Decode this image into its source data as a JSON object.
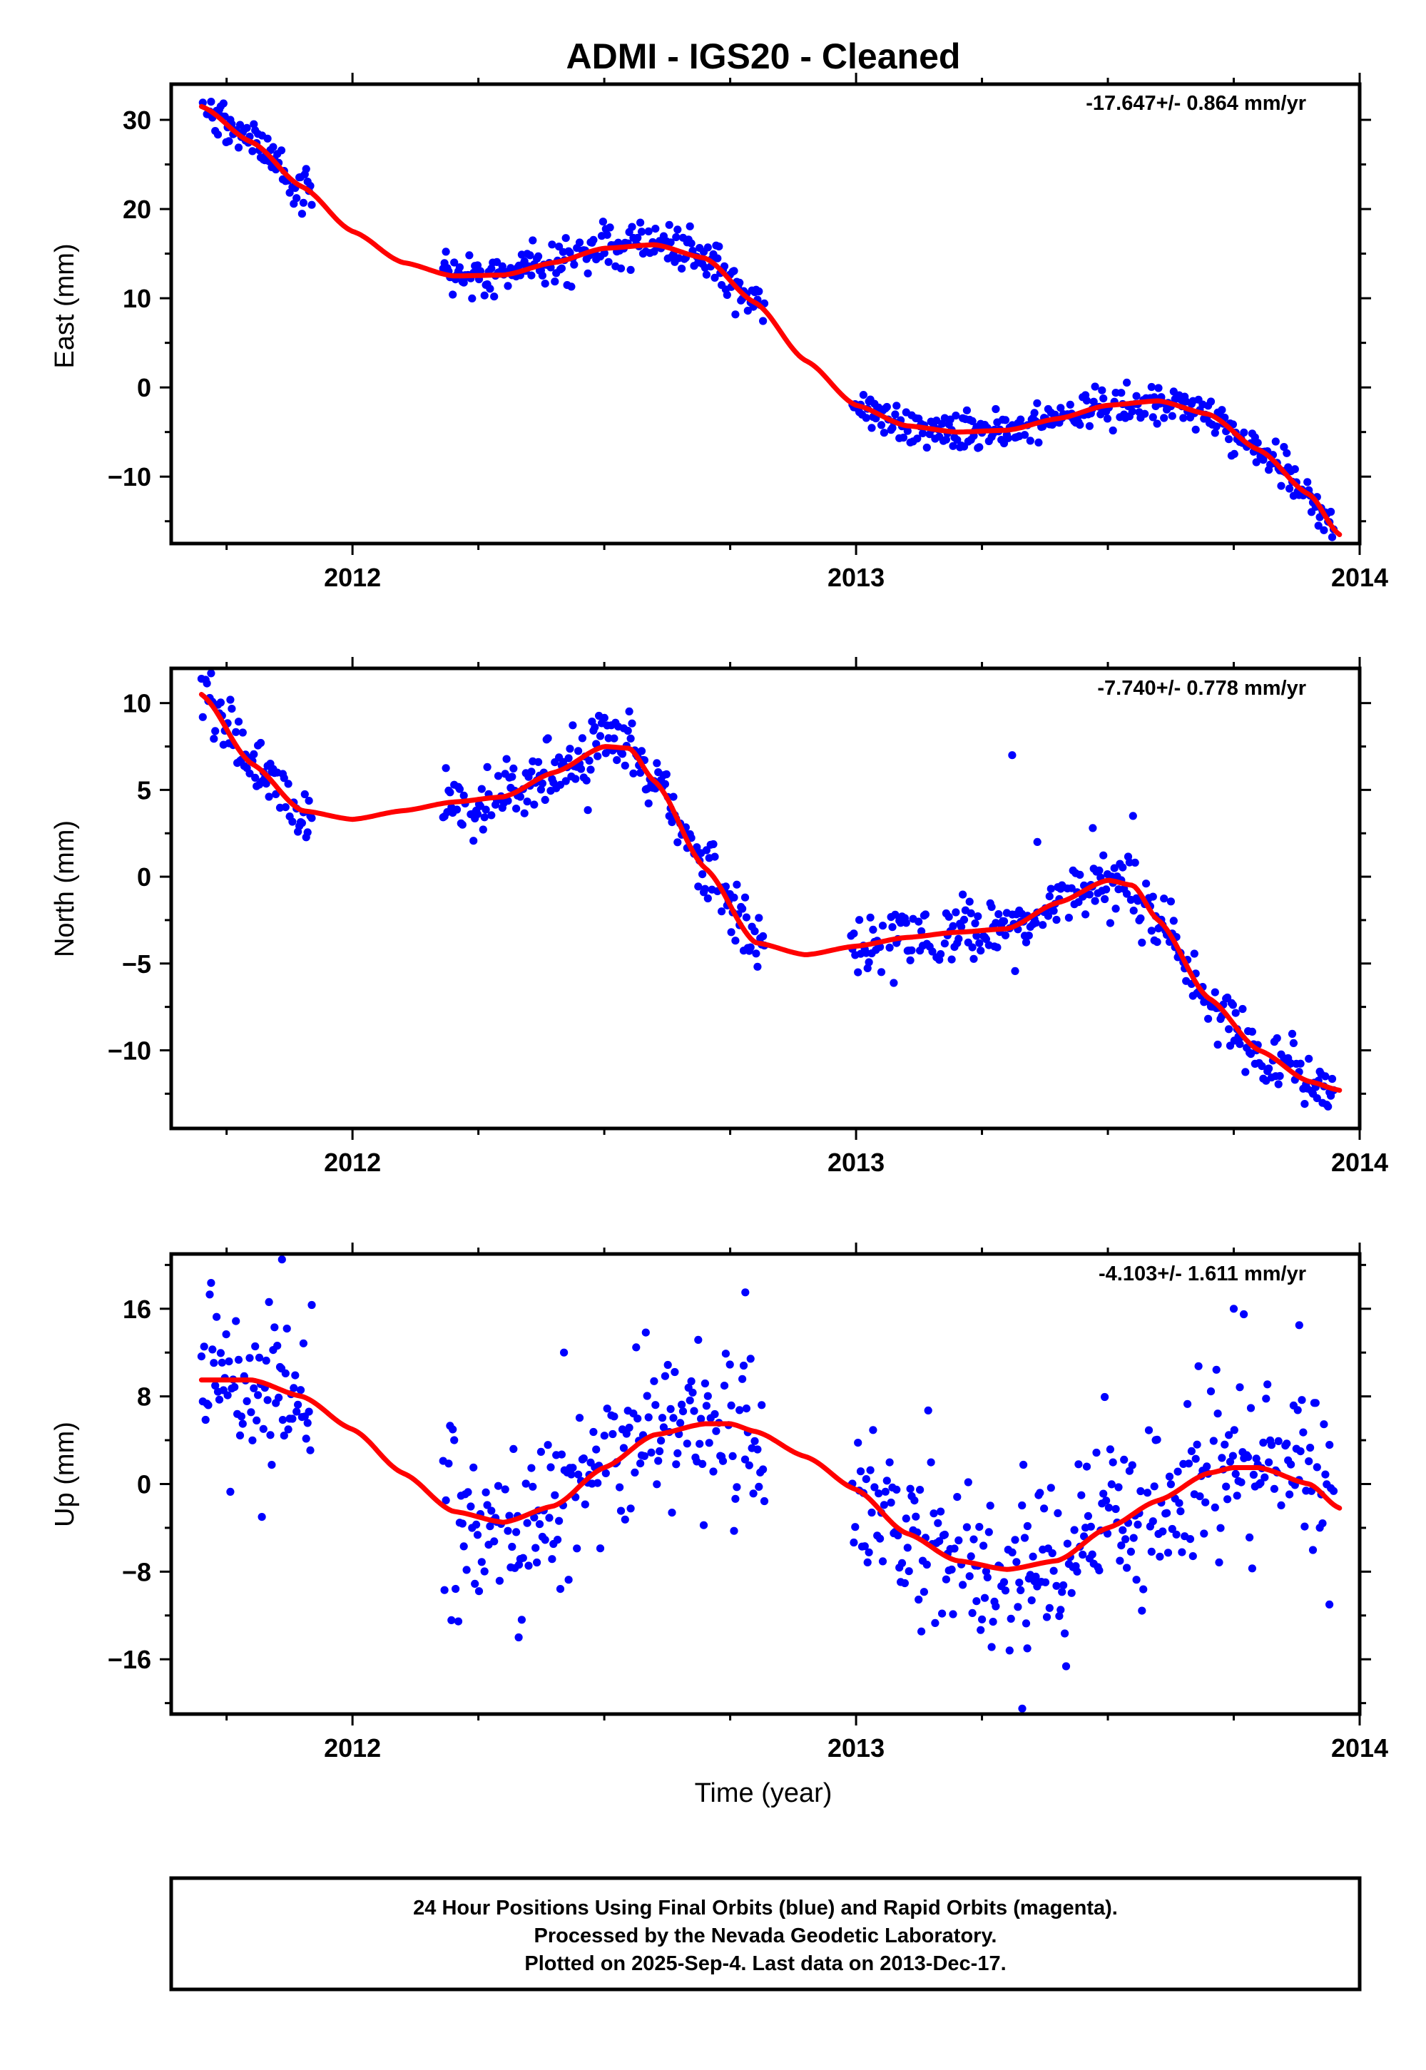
{
  "colors": {
    "final_orbits": "#0000ff",
    "rapid_orbits": "#ff00ff",
    "fit_line": "#ff0000",
    "frame": "#000000"
  },
  "chart_data": [
    {
      "type": "scatter",
      "title": "ADMI  - IGS20 - Cleaned",
      "ylabel": "East (mm)",
      "xlabel": "",
      "rate_text": "-17.647+/- 0.864 mm/yr",
      "xlim": [
        2011.64,
        2014.0
      ],
      "ylim": [
        -17.5,
        34.0
      ],
      "xticks": [
        2012,
        2013,
        2014
      ],
      "yticks": [
        -10,
        0,
        10,
        20,
        30
      ],
      "grid": false,
      "data_segments": [
        [
          2011.7,
          2011.92
        ],
        [
          2012.18,
          2012.82
        ],
        [
          2012.99,
          2013.95
        ]
      ],
      "scatter_sigma": 1.1,
      "trend_curve": {
        "x": [
          2011.7,
          2011.8,
          2011.9,
          2012.0,
          2012.1,
          2012.2,
          2012.3,
          2012.4,
          2012.5,
          2012.6,
          2012.7,
          2012.8,
          2012.9,
          2013.0,
          2013.1,
          2013.2,
          2013.3,
          2013.4,
          2013.5,
          2013.6,
          2013.7,
          2013.8,
          2013.9,
          2013.96
        ],
        "y": [
          31.5,
          27.5,
          22.5,
          17.5,
          14.0,
          12.5,
          12.6,
          14.0,
          15.6,
          16.0,
          14.5,
          9.5,
          3.0,
          -2.0,
          -4.3,
          -5.0,
          -4.8,
          -3.5,
          -2.0,
          -1.5,
          -3.0,
          -7.0,
          -12.0,
          -16.5
        ]
      },
      "outliers": []
    },
    {
      "type": "scatter",
      "title": "",
      "ylabel": "North (mm)",
      "xlabel": "",
      "rate_text": "-7.740+/- 0.778 mm/yr",
      "xlim": [
        2011.64,
        2014.0
      ],
      "ylim": [
        -14.5,
        12.0
      ],
      "xticks": [
        2012,
        2013,
        2014
      ],
      "yticks": [
        -10,
        -5,
        0,
        5,
        10
      ],
      "grid": false,
      "data_segments": [
        [
          2011.7,
          2011.92
        ],
        [
          2012.18,
          2012.82
        ],
        [
          2012.99,
          2013.95
        ]
      ],
      "scatter_sigma": 0.9,
      "trend_curve": {
        "x": [
          2011.7,
          2011.8,
          2011.9,
          2012.0,
          2012.1,
          2012.2,
          2012.3,
          2012.4,
          2012.5,
          2012.55,
          2012.6,
          2012.7,
          2012.8,
          2012.9,
          2013.0,
          2013.1,
          2013.2,
          2013.3,
          2013.4,
          2013.5,
          2013.55,
          2013.6,
          2013.7,
          2013.8,
          2013.9,
          2013.96
        ],
        "y": [
          10.5,
          6.5,
          3.8,
          3.3,
          3.8,
          4.3,
          4.6,
          6.0,
          7.5,
          7.4,
          5.5,
          0.5,
          -3.8,
          -4.5,
          -4.0,
          -3.5,
          -3.2,
          -3.0,
          -1.5,
          -0.2,
          -0.5,
          -2.5,
          -7.0,
          -10.0,
          -11.8,
          -12.3
        ]
      },
      "outliers": [
        [
          2013.31,
          7.0
        ],
        [
          2013.36,
          2.0
        ],
        [
          2013.47,
          2.8
        ],
        [
          2013.55,
          3.5
        ]
      ]
    },
    {
      "type": "scatter",
      "title": "",
      "ylabel": "Up (mm)",
      "xlabel": "Time (year)",
      "rate_text": "-4.103+/- 1.611 mm/yr",
      "xlim": [
        2011.64,
        2014.0
      ],
      "ylim": [
        -21.0,
        21.0
      ],
      "xticks": [
        2012,
        2013,
        2014
      ],
      "yticks": [
        -16,
        -8,
        0,
        8,
        16
      ],
      "grid": false,
      "data_segments": [
        [
          2011.7,
          2011.92
        ],
        [
          2012.18,
          2012.82
        ],
        [
          2012.99,
          2013.95
        ]
      ],
      "scatter_sigma": 3.8,
      "trend_curve": {
        "x": [
          2011.7,
          2011.8,
          2011.9,
          2012.0,
          2012.1,
          2012.2,
          2012.3,
          2012.4,
          2012.5,
          2012.6,
          2012.7,
          2012.75,
          2012.8,
          2012.9,
          2013.0,
          2013.1,
          2013.2,
          2013.3,
          2013.4,
          2013.5,
          2013.6,
          2013.7,
          2013.75,
          2013.8,
          2013.9,
          2013.96
        ],
        "y": [
          9.5,
          9.5,
          8.0,
          5.0,
          1.0,
          -2.5,
          -3.5,
          -2.0,
          1.5,
          4.5,
          5.5,
          5.5,
          4.8,
          2.5,
          -0.5,
          -4.5,
          -7.0,
          -7.8,
          -7.0,
          -4.0,
          -1.5,
          1.0,
          1.5,
          1.5,
          0.0,
          -2.2
        ]
      },
      "outliers": [
        [
          2011.82,
          -3.0
        ],
        [
          2011.86,
          20.5
        ],
        [
          2012.33,
          -14.0
        ],
        [
          2013.33,
          -20.5
        ],
        [
          2013.34,
          -15.0
        ],
        [
          2013.75,
          16.0
        ],
        [
          2013.77,
          15.5
        ],
        [
          2013.88,
          14.5
        ],
        [
          2013.94,
          -11.0
        ],
        [
          2012.42,
          12.0
        ],
        [
          2012.78,
          17.5
        ]
      ]
    }
  ],
  "footer": {
    "line1": "24 Hour Positions Using Final Orbits (blue) and Rapid Orbits (magenta).",
    "line2": "Processed by the Nevada Geodetic Laboratory.",
    "line3": "Plotted on 2025-Sep-4. Last data on 2013-Dec-17."
  }
}
